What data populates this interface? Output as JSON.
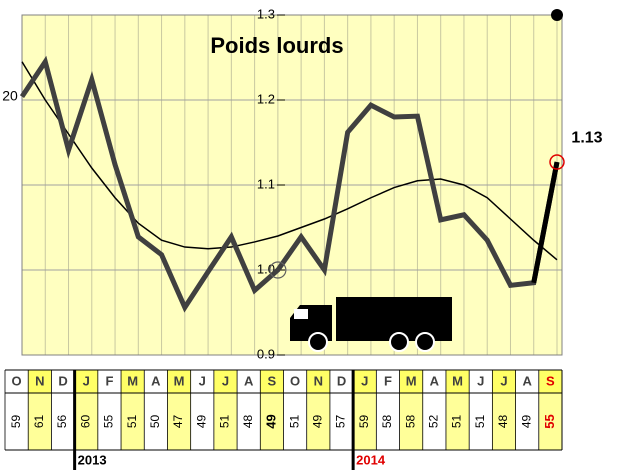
{
  "chart_data": {
    "type": "line",
    "title": "Poids lourds",
    "categories": [
      "O",
      "N",
      "D",
      "J",
      "F",
      "M",
      "A",
      "M",
      "J",
      "J",
      "A",
      "S",
      "O",
      "N",
      "D",
      "J",
      "F",
      "M",
      "A",
      "M",
      "J",
      "J",
      "A",
      "S"
    ],
    "series": [
      {
        "color": "#404040",
        "values": [
          1.204,
          1.245,
          1.141,
          1.224,
          1.124,
          1.039,
          1.018,
          0.956,
          0.998,
          1.039,
          0.976,
          1.0,
          1.039,
          1.0,
          1.162,
          1.194,
          1.18,
          1.181,
          1.059,
          1.065,
          1.035,
          0.982,
          0.985,
          1.127
        ],
        "value_labels": [
          null,
          null,
          null,
          null,
          null,
          null,
          null,
          null,
          null,
          null,
          null,
          null,
          null,
          null,
          null,
          null,
          null,
          null,
          null,
          null,
          null,
          null,
          null,
          "1.13"
        ]
      },
      {
        "color": "#000000",
        "values": [
          1.245,
          1.2,
          1.16,
          1.12,
          1.085,
          1.055,
          1.035,
          1.027,
          1.025,
          1.027,
          1.033,
          1.04,
          1.05,
          1.06,
          1.072,
          1.085,
          1.097,
          1.105,
          1.107,
          1.1,
          1.085,
          1.06,
          1.035,
          1.012
        ]
      }
    ],
    "ylim": [
      0.9,
      1.3
    ],
    "yticks": [
      {
        "value": 0.9,
        "label": "0.9"
      },
      {
        "value": 1,
        "label": "1.0"
      },
      {
        "value": 1.1,
        "label": "1.1"
      },
      {
        "value": 1.2,
        "label": "1.2"
      },
      {
        "value": 1.3,
        "label": "1.3"
      }
    ],
    "grid": true,
    "left_axis_label": "20",
    "counts": [
      59,
      61,
      56,
      60,
      55,
      51,
      50,
      47,
      49,
      51,
      48,
      49,
      51,
      49,
      57,
      59,
      58,
      58,
      52,
      51,
      51,
      48,
      49,
      55
    ],
    "years": [
      "2013",
      "2014"
    ]
  }
}
